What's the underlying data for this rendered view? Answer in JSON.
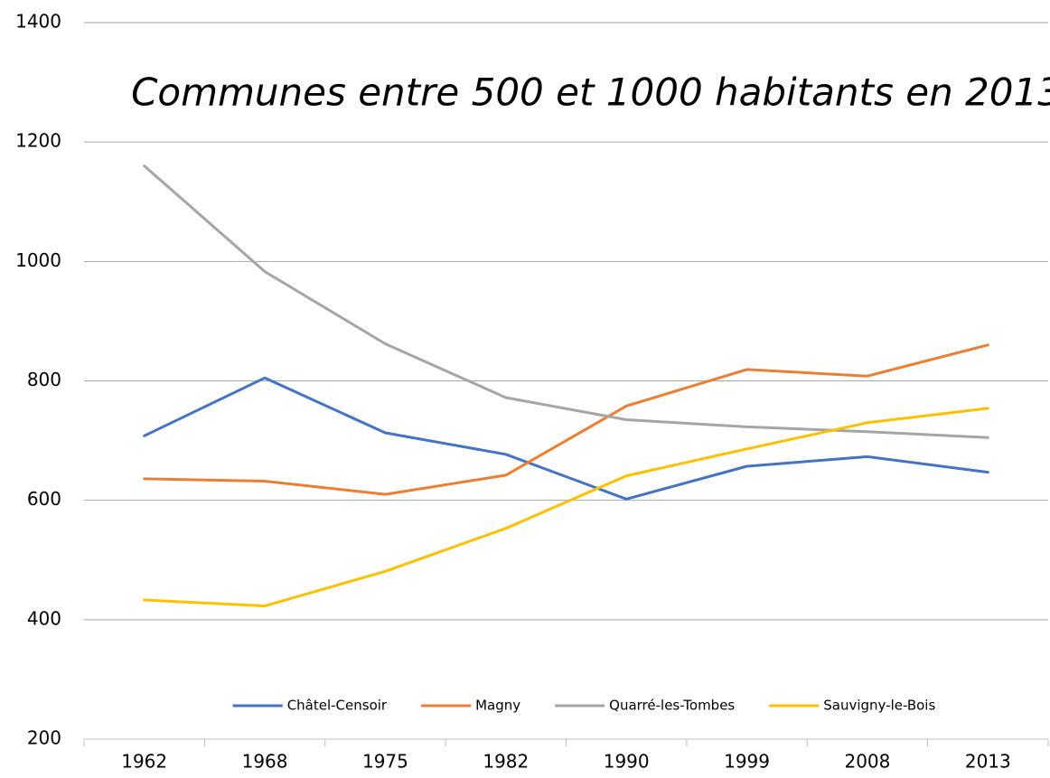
{
  "chart_data": {
    "type": "line",
    "title": "Communes entre 500 et 1000 habitants en 2013",
    "categories": [
      "1962",
      "1968",
      "1975",
      "1982",
      "1990",
      "1999",
      "2008",
      "2013"
    ],
    "series": [
      {
        "name": "Châtel-Censoir",
        "color": "#4472c4",
        "values": [
          708,
          805,
          713,
          677,
          602,
          657,
          673,
          647
        ]
      },
      {
        "name": "Magny",
        "color": "#ed7d31",
        "values": [
          636,
          632,
          610,
          642,
          758,
          819,
          808,
          860
        ]
      },
      {
        "name": "Quarré-les-Tombes",
        "color": "#a5a5a5",
        "values": [
          1160,
          983,
          862,
          772,
          735,
          723,
          715,
          705
        ]
      },
      {
        "name": "Sauvigny-le-Bois",
        "color": "#ffc000",
        "values": [
          433,
          423,
          481,
          553,
          641,
          686,
          730,
          754
        ]
      }
    ],
    "ylim": [
      200,
      1400
    ],
    "yticks": [
      200,
      400,
      600,
      800,
      1000,
      1200,
      1400
    ],
    "grid": true,
    "legend": "bottom"
  }
}
